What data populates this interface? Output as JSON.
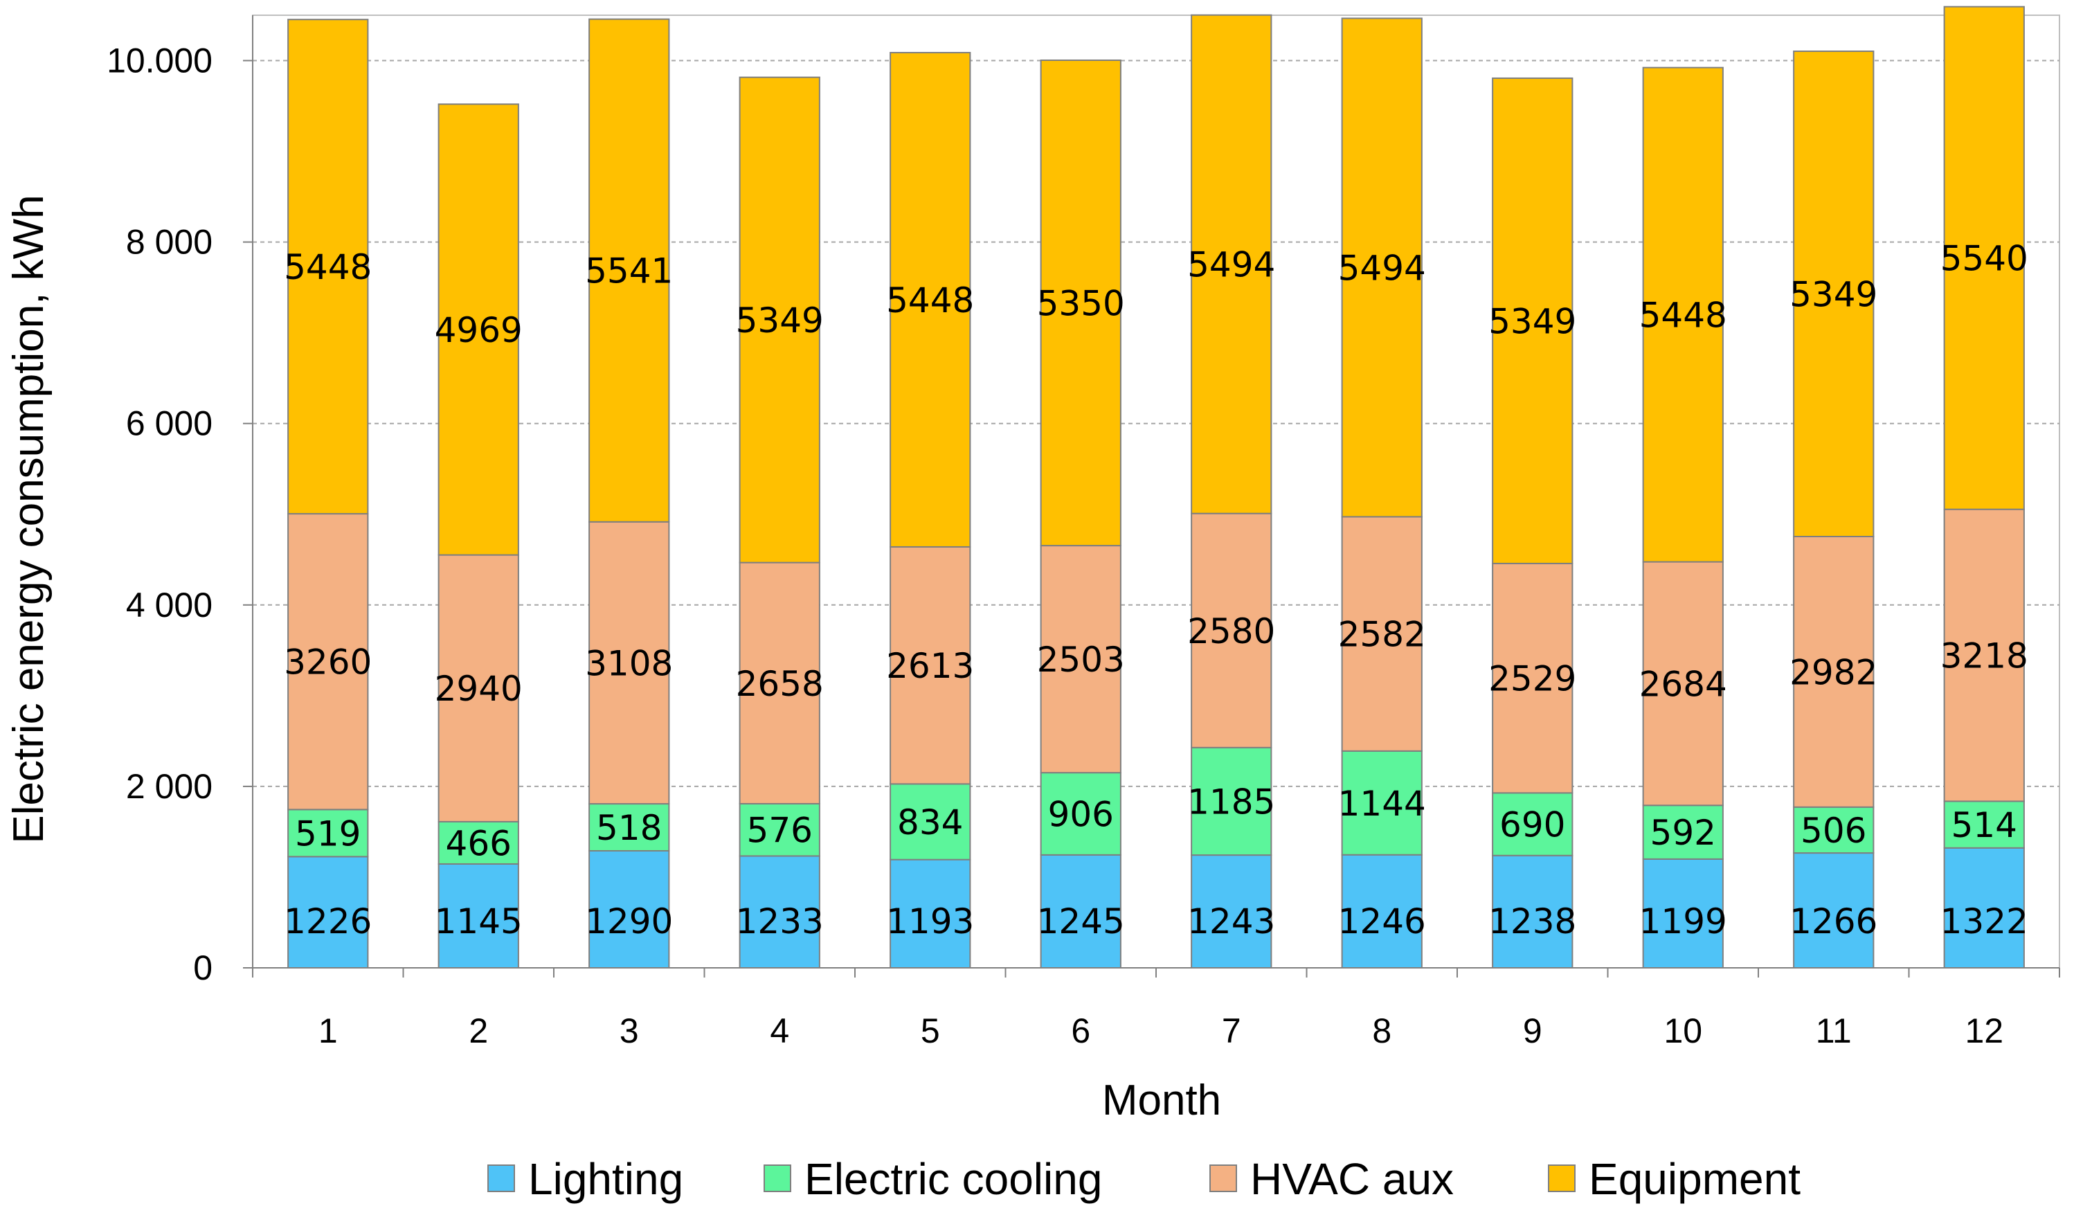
{
  "chart_data": {
    "type": "bar",
    "stacked": true,
    "title": "",
    "xlabel": "Month",
    "ylabel": "Electric energy consumption, kWh",
    "ylim": [
      0,
      10500
    ],
    "yticks": [
      0,
      2000,
      4000,
      6000,
      8000,
      10000
    ],
    "ytick_labels": [
      "0",
      "2 000",
      "4 000",
      "6 000",
      "8 000",
      "10.000"
    ],
    "grid": "horizontal dashed",
    "legend_position": "bottom",
    "categories": [
      "1",
      "2",
      "3",
      "4",
      "5",
      "6",
      "7",
      "8",
      "9",
      "10",
      "11",
      "12"
    ],
    "series": [
      {
        "name": "Lighting",
        "color": "#4FC3F7",
        "values": [
          1226,
          1145,
          1290,
          1233,
          1193,
          1245,
          1243,
          1246,
          1238,
          1199,
          1266,
          1322
        ]
      },
      {
        "name": "Electric cooling",
        "color": "#5CF59B",
        "values": [
          519,
          466,
          518,
          576,
          834,
          906,
          1185,
          1144,
          690,
          592,
          506,
          514
        ]
      },
      {
        "name": "HVAC aux",
        "color": "#F4B183",
        "values": [
          3260,
          2940,
          3108,
          2658,
          2613,
          2503,
          2580,
          2582,
          2529,
          2684,
          2982,
          3218
        ]
      },
      {
        "name": "Equipment",
        "color": "#FFC000",
        "values": [
          5448,
          4969,
          5541,
          5349,
          5448,
          5350,
          5494,
          5494,
          5349,
          5448,
          5349,
          5540
        ]
      }
    ]
  }
}
